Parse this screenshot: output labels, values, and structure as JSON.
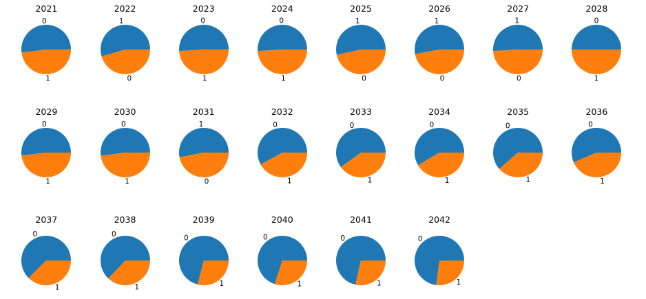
{
  "figure": {
    "background": "#ffffff",
    "text_color": "#000000",
    "palette": [
      "#1f77b4",
      "#ff7f0e"
    ],
    "layout": {
      "rows": 3,
      "cols": 8,
      "legend": "none",
      "grid": "off"
    }
  },
  "chart_data": [
    {
      "type": "pie",
      "title": "2021",
      "labels": [
        "0",
        "1"
      ],
      "values": [
        0.52,
        0.48
      ]
    },
    {
      "type": "pie",
      "title": "2022",
      "labels": [
        "1",
        "0"
      ],
      "values": [
        0.545,
        0.455
      ]
    },
    {
      "type": "pie",
      "title": "2023",
      "labels": [
        "0",
        "1"
      ],
      "values": [
        0.51,
        0.49
      ]
    },
    {
      "type": "pie",
      "title": "2024",
      "labels": [
        "0",
        "1"
      ],
      "values": [
        0.51,
        0.49
      ]
    },
    {
      "type": "pie",
      "title": "2025",
      "labels": [
        "1",
        "0"
      ],
      "values": [
        0.535,
        0.465
      ]
    },
    {
      "type": "pie",
      "title": "2026",
      "labels": [
        "1",
        "0"
      ],
      "values": [
        0.53,
        0.47
      ]
    },
    {
      "type": "pie",
      "title": "2027",
      "labels": [
        "1",
        "0"
      ],
      "values": [
        0.51,
        0.49
      ]
    },
    {
      "type": "pie",
      "title": "2028",
      "labels": [
        "0",
        "1"
      ],
      "values": [
        0.5,
        0.5
      ]
    },
    {
      "type": "pie",
      "title": "2029",
      "labels": [
        "0",
        "1"
      ],
      "values": [
        0.52,
        0.48
      ]
    },
    {
      "type": "pie",
      "title": "2030",
      "labels": [
        "0",
        "1"
      ],
      "values": [
        0.52,
        0.48
      ]
    },
    {
      "type": "pie",
      "title": "2031",
      "labels": [
        "1",
        "0"
      ],
      "values": [
        0.53,
        0.47
      ]
    },
    {
      "type": "pie",
      "title": "2032",
      "labels": [
        "0",
        "1"
      ],
      "values": [
        0.58,
        0.42
      ]
    },
    {
      "type": "pie",
      "title": "2033",
      "labels": [
        "0",
        "1"
      ],
      "values": [
        0.6,
        0.4
      ]
    },
    {
      "type": "pie",
      "title": "2034",
      "labels": [
        "0",
        "1"
      ],
      "values": [
        0.585,
        0.415
      ]
    },
    {
      "type": "pie",
      "title": "2035",
      "labels": [
        "0",
        "1"
      ],
      "values": [
        0.615,
        0.385
      ]
    },
    {
      "type": "pie",
      "title": "2036",
      "labels": [
        "0",
        "1"
      ],
      "values": [
        0.565,
        0.435
      ]
    },
    {
      "type": "pie",
      "title": "2037",
      "labels": [
        "0",
        "1"
      ],
      "values": [
        0.625,
        0.375
      ]
    },
    {
      "type": "pie",
      "title": "2038",
      "labels": [
        "0",
        "1"
      ],
      "values": [
        0.63,
        0.37
      ]
    },
    {
      "type": "pie",
      "title": "2039",
      "labels": [
        "0",
        "1"
      ],
      "values": [
        0.71,
        0.29
      ]
    },
    {
      "type": "pie",
      "title": "2040",
      "labels": [
        "0",
        "1"
      ],
      "values": [
        0.7,
        0.3
      ]
    },
    {
      "type": "pie",
      "title": "2041",
      "labels": [
        "0",
        "1"
      ],
      "values": [
        0.715,
        0.285
      ]
    },
    {
      "type": "pie",
      "title": "2042",
      "labels": [
        "0",
        "1"
      ],
      "values": [
        0.73,
        0.27
      ]
    }
  ]
}
